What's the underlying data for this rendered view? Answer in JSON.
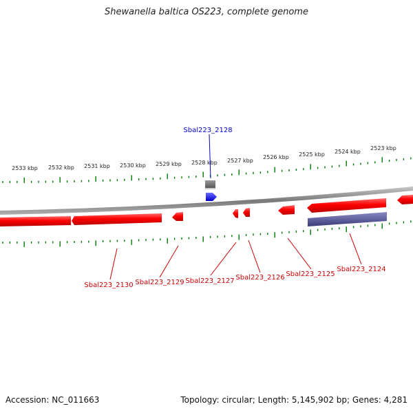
{
  "title": "Shewanella baltica OS223, complete genome",
  "footer": {
    "accession": "Accession: NC_011663",
    "summary": "Topology: circular; Length: 5,145,902 bp; Genes: 4,281"
  },
  "scale_labels": [
    "2533 kbp",
    "2532 kbp",
    "2531 kbp",
    "2530 kbp",
    "2529 kbp",
    "2528 kbp",
    "2527 kbp",
    "2526 kbp",
    "2525 kbp",
    "2524 kbp",
    "2523 kbp"
  ],
  "gene_labels": {
    "Sbal223_2128": "Sbal223_2128",
    "Sbal223_2130": "Sbal223_2130",
    "Sbal223_2129": "Sbal223_2129",
    "Sbal223_2127": "Sbal223_2127",
    "Sbal223_2126": "Sbal223_2126",
    "Sbal223_2125": "Sbal223_2125",
    "Sbal223_2124": "Sbal223_2124"
  },
  "colors": {
    "forward_gene": "#ff0000",
    "highlight_gene": "#0000ff",
    "other_feature": "#6a6a6a",
    "long_feature": "#4c4c96",
    "tick": "#007a00",
    "backbone": "#8c8c8c",
    "label_top": "#0000cc",
    "label_bottom": "#cc0000"
  }
}
